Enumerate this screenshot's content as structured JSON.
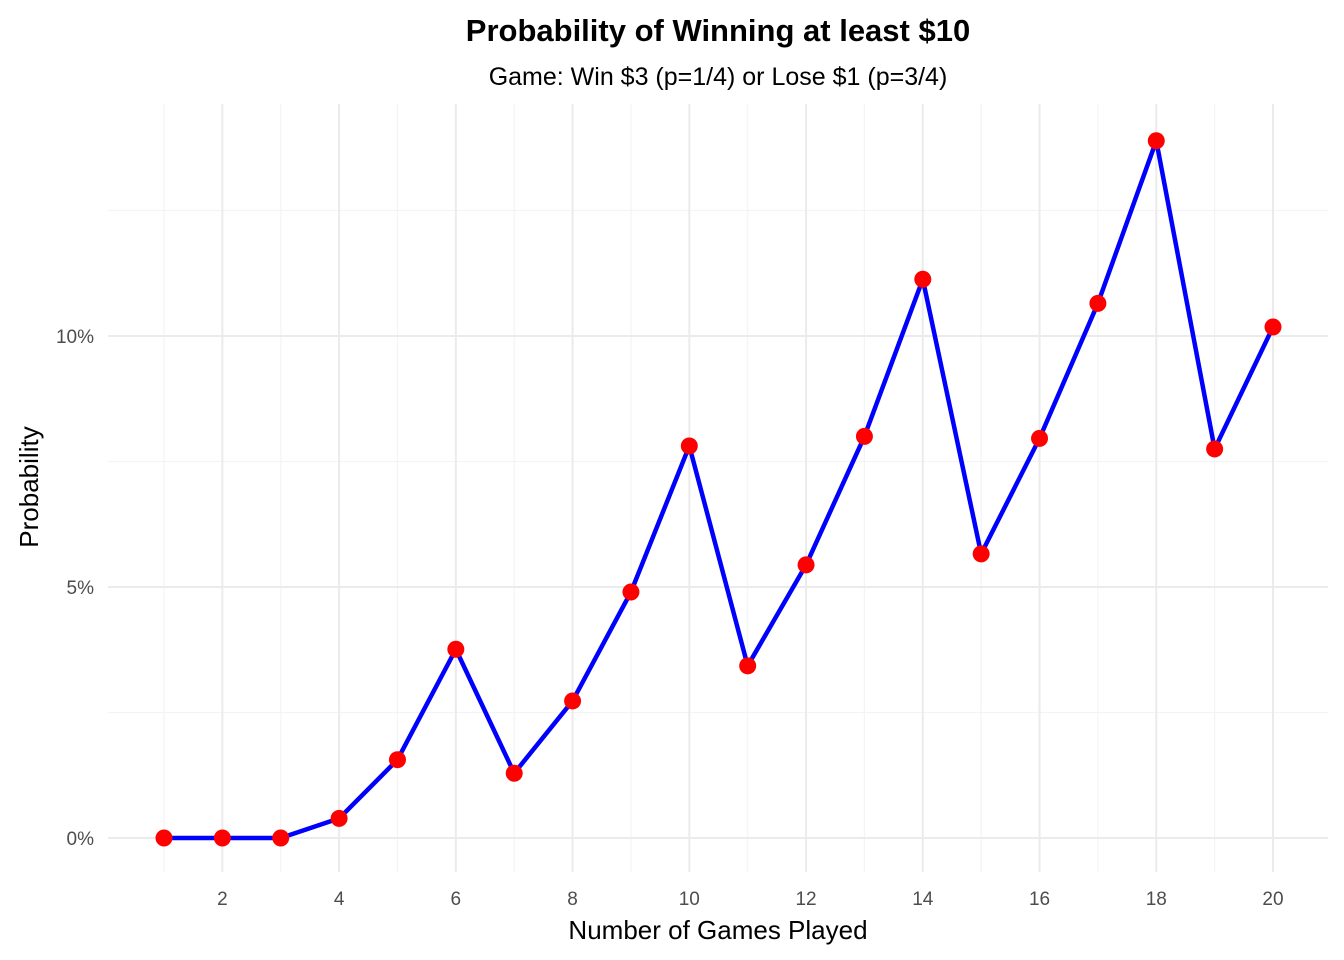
{
  "chart_data": {
    "type": "line",
    "title": "Probability of Winning at least $10",
    "subtitle": "Game: Win $3 (p=1/4) or Lose $1 (p=3/4)",
    "xlabel": "Number of Games Played",
    "ylabel": "Probability",
    "xlim": [
      1,
      20
    ],
    "ylim": [
      0,
      0.14
    ],
    "x_ticks": [
      2,
      4,
      6,
      8,
      10,
      12,
      14,
      16,
      18,
      20
    ],
    "x_tick_labels": [
      "2",
      "4",
      "6",
      "8",
      "10",
      "12",
      "14",
      "16",
      "18",
      "20"
    ],
    "y_ticks": [
      0,
      0.05,
      0.1
    ],
    "y_tick_labels": [
      "0%",
      "5%",
      "10%"
    ],
    "grid": true,
    "legend": false,
    "line_color": "#0000ff",
    "point_color": "#ff0000",
    "x": [
      1,
      2,
      3,
      4,
      5,
      6,
      7,
      8,
      9,
      10,
      11,
      12,
      13,
      14,
      15,
      16,
      17,
      18,
      19,
      20
    ],
    "values": [
      0,
      0,
      0,
      0.0039,
      0.0156,
      0.0376,
      0.0129,
      0.0273,
      0.049,
      0.0781,
      0.0343,
      0.0544,
      0.08,
      0.1113,
      0.0566,
      0.0796,
      0.1065,
      0.1389,
      0.0775,
      0.1018
    ]
  }
}
